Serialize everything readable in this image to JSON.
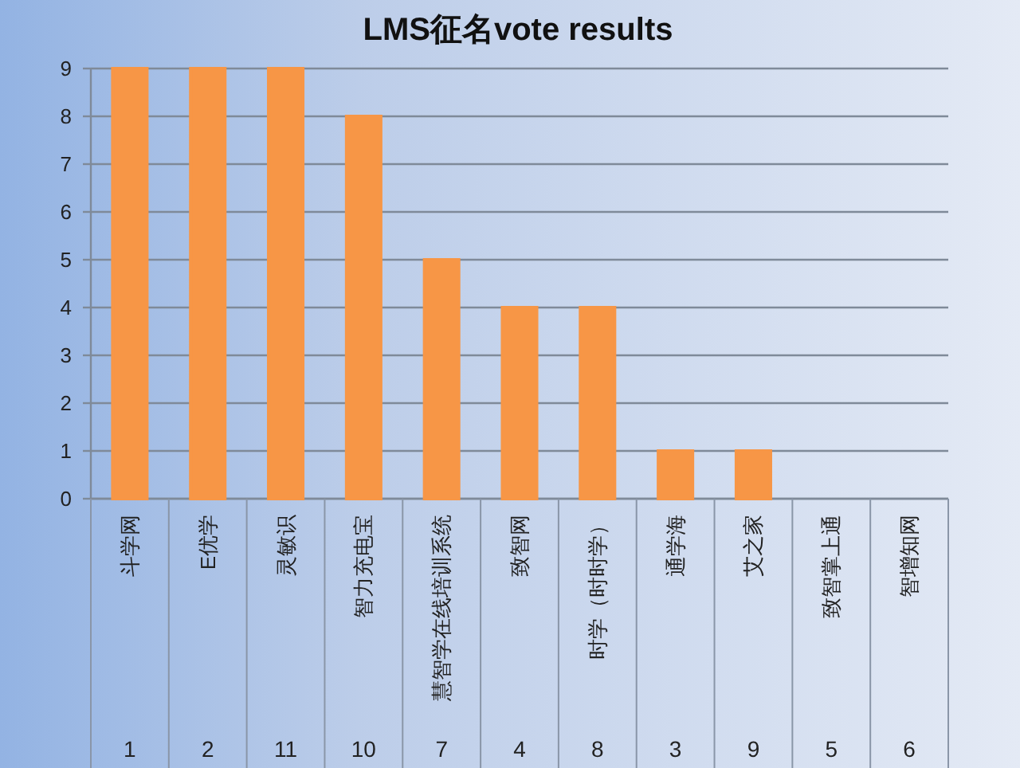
{
  "chart_data": {
    "type": "bar",
    "title": "LMS征名vote results",
    "categories": [
      "斗学网",
      "E优学",
      "灵敏识",
      "智力充电宝",
      "慧智学在线培训系统",
      "致智网",
      "时学（时时学）",
      "通学海",
      "艾之家",
      "致智掌上通",
      "智增知网"
    ],
    "values": [
      9,
      9,
      9,
      8,
      5,
      4,
      4,
      1,
      1,
      0,
      0
    ],
    "color": "#f79646",
    "ylim": [
      0,
      9
    ],
    "yticks": [
      0,
      1,
      2,
      3,
      4,
      5,
      6,
      7,
      8,
      9
    ],
    "grid": "y",
    "annotations": [
      "1",
      "2",
      "11",
      "10",
      "7",
      "4",
      "8",
      "3",
      "9",
      "5",
      "6"
    ]
  }
}
